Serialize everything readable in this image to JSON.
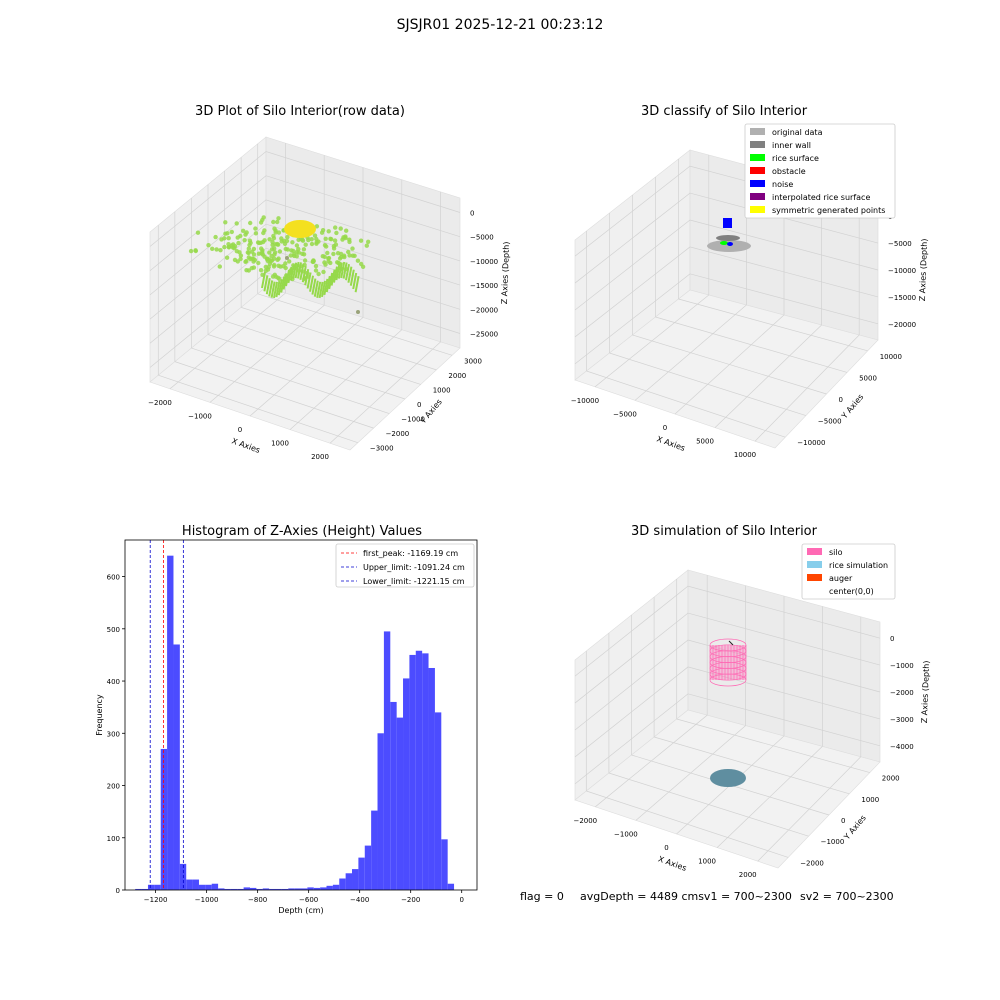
{
  "suptitle": "SJSJR01 2025-12-21 00:23:12",
  "status": {
    "flag": "flag = 0",
    "avg": "avgDepth = 4489 cmsv1 = 700~2300",
    "sv2": "sv2 = 700~2300"
  },
  "chart_data": [
    {
      "type": "scatter",
      "title": "3D Plot of Silo Interior(row data)",
      "xlabel": "X Axies",
      "ylabel": "Y Axies",
      "zlabel": "Z Axies (Depth)",
      "xticks": [
        "−2000",
        "−1000",
        "0",
        "1000",
        "2000"
      ],
      "yticks": [
        "3000",
        "2000",
        "1000",
        "0",
        "−1000",
        "−2000",
        "−3000"
      ],
      "zticks": [
        "0",
        "−5000",
        "−10000",
        "−15000",
        "−20000",
        "−25000"
      ],
      "colors": {
        "points": "#96d94a",
        "peak": "#f4e01f",
        "outlier": "#9aa37a"
      }
    },
    {
      "type": "scatter",
      "title": "3D classify of Silo Interior",
      "xlabel": "X Axies",
      "ylabel": "Y Axies",
      "zlabel": "Z Axies (Depth)",
      "xticks": [
        "−10000",
        "−5000",
        "0",
        "5000",
        "10000"
      ],
      "yticks": [
        "10000",
        "5000",
        "0",
        "−5000",
        "−10000"
      ],
      "zticks": [
        "0",
        "−5000",
        "−10000",
        "−15000",
        "−20000"
      ],
      "legend": [
        {
          "label": "original data",
          "color": "#b0b0b0"
        },
        {
          "label": "inner wall",
          "color": "#808080"
        },
        {
          "label": "rice surface",
          "color": "#00ff00"
        },
        {
          "label": "obstacle",
          "color": "#ff0000"
        },
        {
          "label": "noise",
          "color": "#0000ff"
        },
        {
          "label": "interpolated rice surface",
          "color": "#800080"
        },
        {
          "label": "symmetric generated points",
          "color": "#ffff00"
        }
      ]
    },
    {
      "type": "bar",
      "title": "Histogram of Z-Axies (Height) Values",
      "xlabel": "Depth (cm)",
      "ylabel": "Frequency",
      "xlim": [
        -1320,
        60
      ],
      "ylim": [
        0,
        670
      ],
      "xticks": [
        -1200,
        -1000,
        -800,
        -600,
        -400,
        -200,
        0
      ],
      "yticks": [
        0,
        100,
        200,
        300,
        400,
        500,
        600
      ],
      "bin_width": 25,
      "bar_color": "#4c4cff",
      "bins": [
        [
          -1280,
          2
        ],
        [
          -1255,
          2
        ],
        [
          -1230,
          10
        ],
        [
          -1205,
          10
        ],
        [
          -1180,
          270
        ],
        [
          -1155,
          640
        ],
        [
          -1130,
          470
        ],
        [
          -1105,
          50
        ],
        [
          -1080,
          20
        ],
        [
          -1055,
          20
        ],
        [
          -1030,
          10
        ],
        [
          -1005,
          10
        ],
        [
          -980,
          12
        ],
        [
          -955,
          3
        ],
        [
          -930,
          2
        ],
        [
          -905,
          2
        ],
        [
          -880,
          2
        ],
        [
          -855,
          5
        ],
        [
          -830,
          4
        ],
        [
          -805,
          2
        ],
        [
          -780,
          3
        ],
        [
          -755,
          2
        ],
        [
          -730,
          2
        ],
        [
          -705,
          2
        ],
        [
          -680,
          3
        ],
        [
          -655,
          3
        ],
        [
          -630,
          3
        ],
        [
          -605,
          5
        ],
        [
          -580,
          4
        ],
        [
          -555,
          5
        ],
        [
          -530,
          8
        ],
        [
          -505,
          10
        ],
        [
          -480,
          22
        ],
        [
          -455,
          32
        ],
        [
          -430,
          40
        ],
        [
          -405,
          62
        ],
        [
          -380,
          85
        ],
        [
          -355,
          152
        ],
        [
          -330,
          300
        ],
        [
          -305,
          495
        ],
        [
          -280,
          360
        ],
        [
          -255,
          330
        ],
        [
          -230,
          405
        ],
        [
          -205,
          450
        ],
        [
          -180,
          458
        ],
        [
          -155,
          453
        ],
        [
          -130,
          425
        ],
        [
          -105,
          340
        ],
        [
          -80,
          97
        ],
        [
          -55,
          12
        ]
      ],
      "vlines": [
        {
          "label": "first_peak: -1169.19 cm",
          "x": -1169.19,
          "color": "#ff0000"
        },
        {
          "label": "Upper_limit: -1091.24 cm",
          "x": -1091.24,
          "color": "#0000cc"
        },
        {
          "label": "Lower_limit: -1221.15 cm",
          "x": -1221.15,
          "color": "#0000cc"
        }
      ]
    },
    {
      "type": "scatter",
      "title": "3D simulation of Silo Interior",
      "xlabel": "X Axies",
      "ylabel": "Y Axies",
      "zlabel": "Z Axies (Depth)",
      "xticks": [
        "−2000",
        "−1000",
        "0",
        "1000",
        "2000"
      ],
      "yticks": [
        "2000",
        "1000",
        "0",
        "−1000",
        "−2000"
      ],
      "zticks": [
        "0",
        "−1000",
        "−2000",
        "−3000",
        "−4000"
      ],
      "legend": [
        {
          "label": "silo",
          "color": "#ff69b4"
        },
        {
          "label": "rice simulation",
          "color": "#87ceeb"
        },
        {
          "label": "auger",
          "color": "#ff4500"
        },
        {
          "label": "center(0,0)",
          "color": "#ffffff"
        }
      ]
    }
  ]
}
